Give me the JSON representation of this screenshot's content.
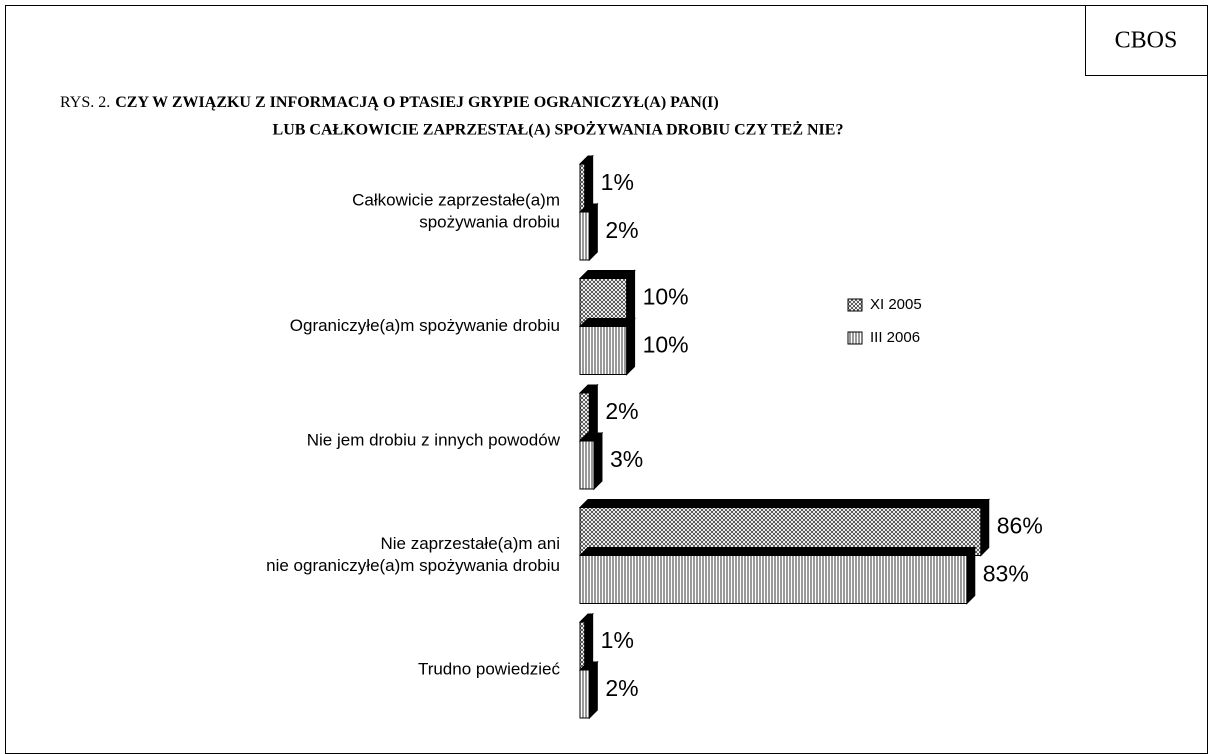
{
  "badge": "CBOS",
  "chart_data": {
    "type": "bar",
    "orientation": "horizontal",
    "title_prefix": "RYS. 2.",
    "title": [
      "CZY W ZWIĄZKU Z INFORMACJĄ O PTASIEJ GRYPIE OGRANICZYŁ(A) PAN(I)",
      "LUB CAŁKOWICIE ZAPRZESTAŁ(A) SPOŻYWANIA DROBIU CZY TEŻ NIE?"
    ],
    "categories": [
      [
        "Całkowicie zaprzestałe(a)m",
        "spożywania drobiu"
      ],
      [
        "Ograniczyłe(a)m spożywanie drobiu"
      ],
      [
        "Nie jem drobiu z innych powodów"
      ],
      [
        "Nie zaprzestałe(a)m ani",
        "nie ograniczyłe(a)m spożywania drobiu"
      ],
      [
        "Trudno powiedzieć"
      ]
    ],
    "series": [
      {
        "name": "XI 2005",
        "pattern": "crosshatch",
        "color": "#000000",
        "values": [
          1,
          10,
          2,
          86,
          1
        ],
        "value_labels": [
          "1%",
          "10%",
          "2%",
          "86%",
          "1%"
        ]
      },
      {
        "name": "III 2006",
        "pattern": "vertical",
        "color": "#000000",
        "values": [
          2,
          10,
          3,
          83,
          2
        ],
        "value_labels": [
          "2%",
          "10%",
          "3%",
          "83%",
          "2%"
        ]
      }
    ],
    "xlim": [
      0,
      100
    ],
    "legend": "right"
  }
}
